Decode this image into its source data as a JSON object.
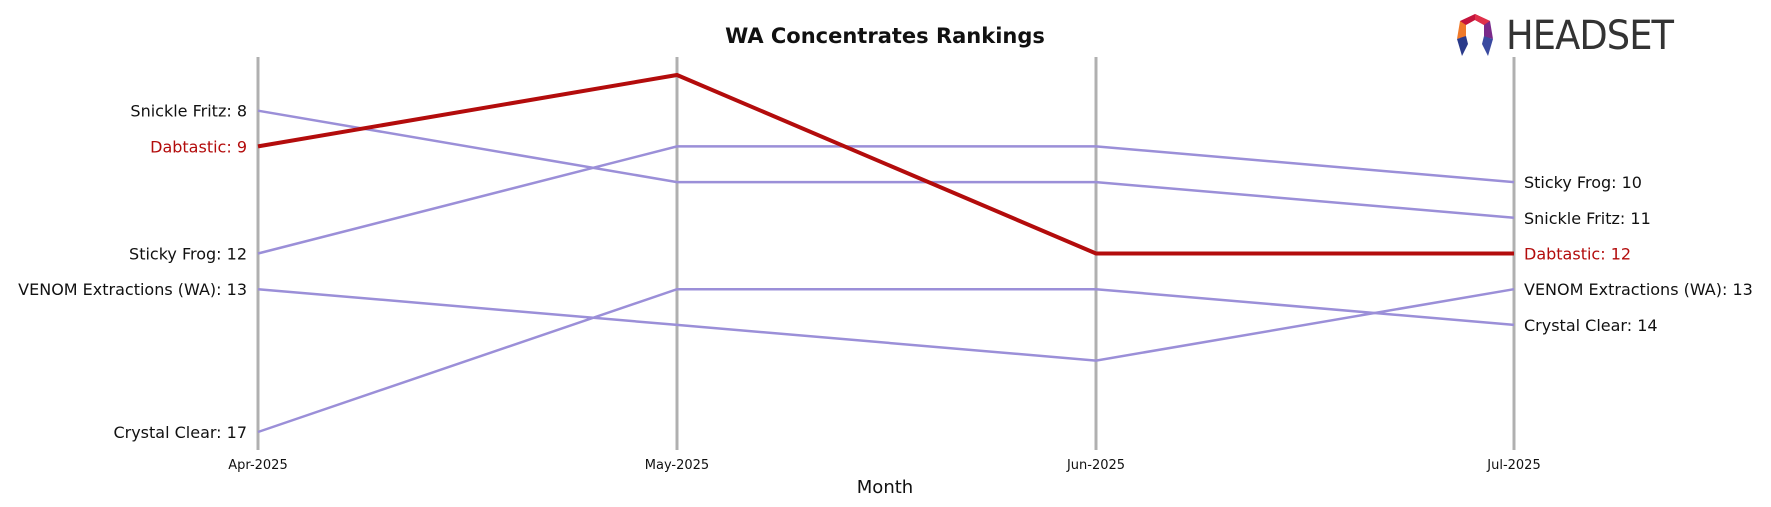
{
  "chart_data": {
    "type": "line",
    "title": "WA Concentrates Rankings",
    "xlabel": "Month",
    "ylabel": "",
    "x": [
      "Apr-2025",
      "May-2025",
      "Jun-2025",
      "Jul-2025"
    ],
    "y_inverted": true,
    "ylim": [
      7,
      18
    ],
    "grid": "vertical lines at each month",
    "legend": "none (series labeled at line ends)",
    "highlight_series": "Dabtastic",
    "series": [
      {
        "name": "Snickle Fritz",
        "values": [
          8,
          10,
          10,
          11
        ],
        "highlight": false
      },
      {
        "name": "Dabtastic",
        "values": [
          9,
          7,
          12,
          12
        ],
        "highlight": true
      },
      {
        "name": "Sticky Frog",
        "values": [
          12,
          9,
          9,
          10
        ],
        "highlight": false
      },
      {
        "name": "VENOM Extractions (WA)",
        "values": [
          13,
          14,
          15,
          13
        ],
        "highlight": false
      },
      {
        "name": "Crystal Clear",
        "values": [
          17,
          13,
          13,
          14
        ],
        "highlight": false
      }
    ],
    "left_labels": [
      "Snickle Fritz: 8",
      "Dabtastic: 9",
      "Sticky Frog: 12",
      "VENOM Extractions (WA): 13",
      "Crystal Clear: 17"
    ],
    "right_labels": [
      "Sticky Frog: 10",
      "Snickle Fritz: 11",
      "Dabtastic: 12",
      "VENOM Extractions (WA): 13",
      "Crystal Clear: 14"
    ]
  },
  "logo": {
    "text": "HEADSET"
  },
  "colors": {
    "highlight": "#b30c0c",
    "other": "#9b8fd8",
    "grid": "#b0b0b0",
    "text": "#111111"
  }
}
